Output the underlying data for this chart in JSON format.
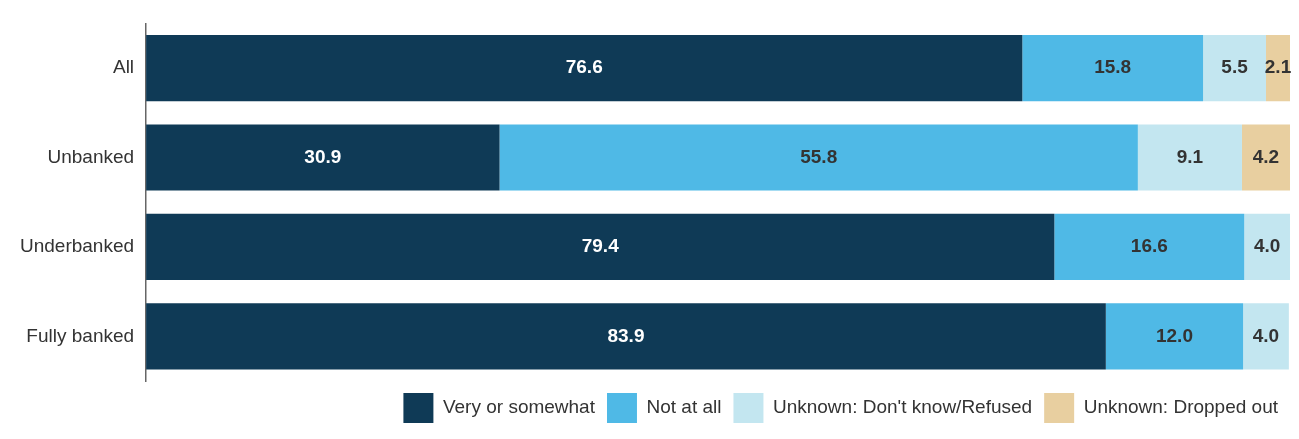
{
  "chart_data": {
    "type": "bar",
    "orientation": "horizontal",
    "stacked": true,
    "categories": [
      "All",
      "Unbanked",
      "Underbanked",
      "Fully banked"
    ],
    "series": [
      {
        "name": "Very or somewhat",
        "color": "#0f3a56",
        "values": [
          76.6,
          30.9,
          79.4,
          83.9
        ],
        "value_labels": [
          "76.6",
          "30.9",
          "79.4",
          "83.9"
        ]
      },
      {
        "name": "Not at all",
        "color": "#4fb9e6",
        "values": [
          15.8,
          55.8,
          16.6,
          12.0
        ],
        "value_labels": [
          "15.8",
          "55.8",
          "16.6",
          "12.0"
        ]
      },
      {
        "name": "Unknown: Don't know/Refused",
        "color": "#c3e6f0",
        "values": [
          5.5,
          9.1,
          4.0,
          4.0
        ],
        "value_labels": [
          "5.5",
          "9.1",
          "4.0",
          "4.0"
        ]
      },
      {
        "name": "Unknown: Dropped out",
        "color": "#e8cfa0",
        "values": [
          2.1,
          4.2,
          null,
          null
        ],
        "value_labels": [
          "2.1",
          "4.2",
          null,
          null
        ]
      }
    ],
    "xlim": [
      0,
      100
    ],
    "tick_labels": "y",
    "legend": "bottom"
  }
}
